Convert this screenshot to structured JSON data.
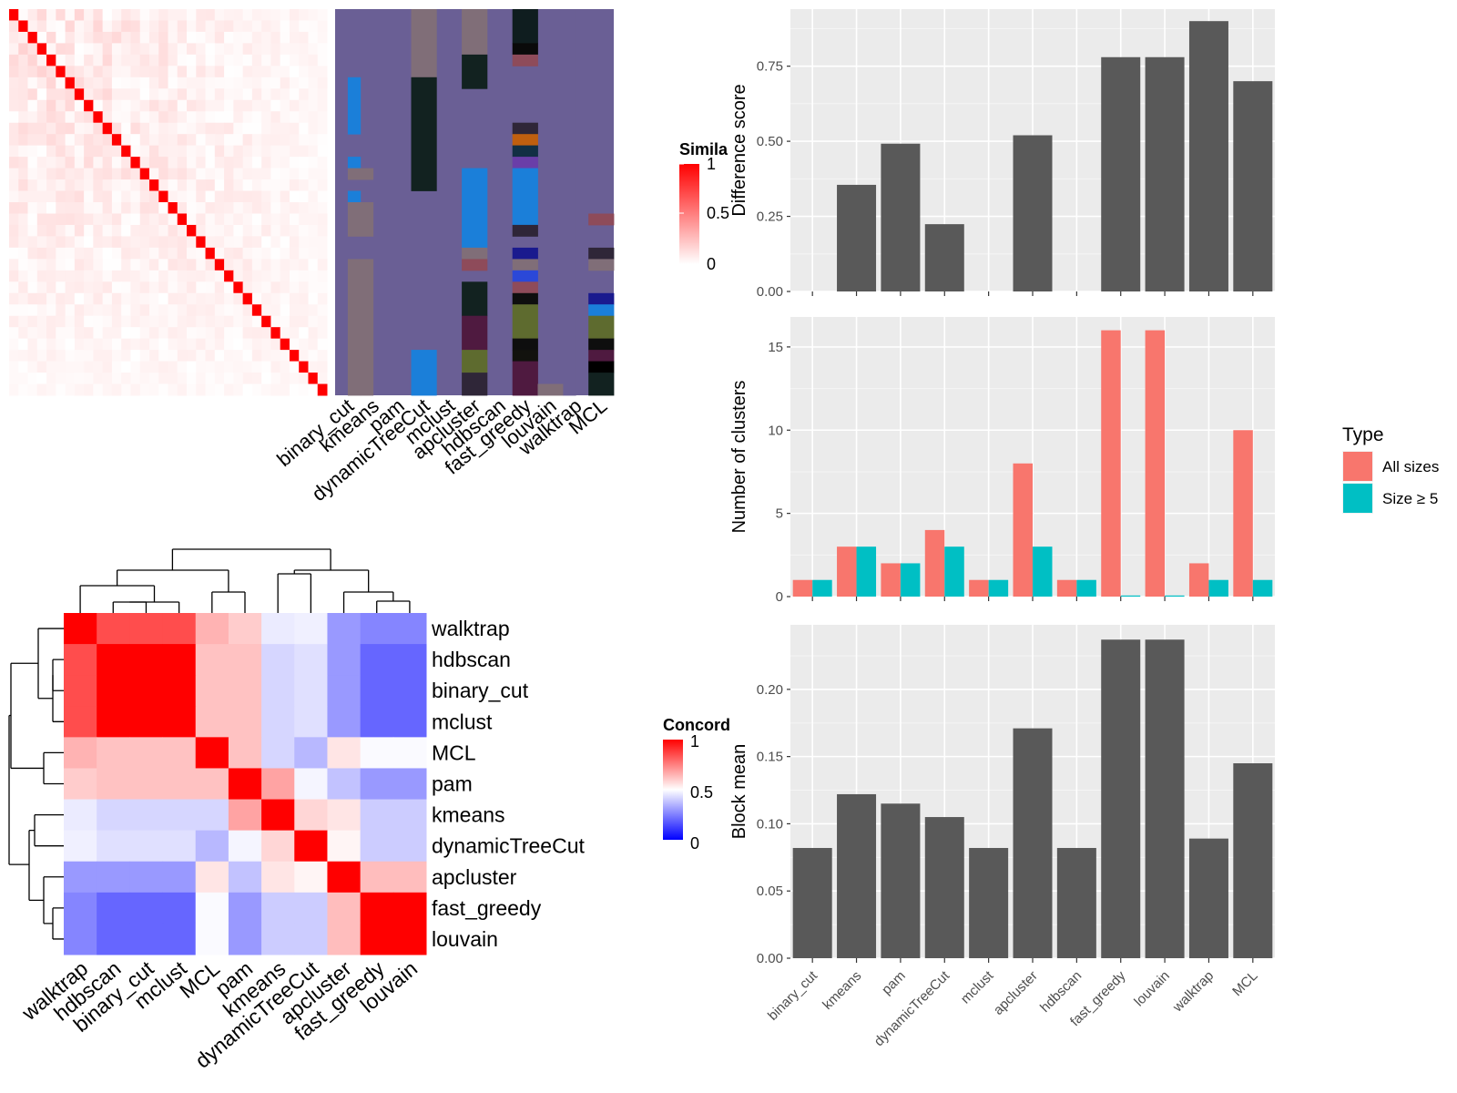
{
  "chart_data": [
    {
      "type": "heatmap",
      "legend_title": "Similarity",
      "legend_title_visible": "Simila",
      "legend_ticks": [
        "1",
        "0.5",
        "0"
      ],
      "colors": {
        "low": "#ffffff",
        "high": "#ff0000"
      },
      "size": 34,
      "diagonal": 1,
      "off_diagonal_max": 0.2
    },
    {
      "type": "heatmap",
      "subtype": "cluster-assignment",
      "columns": [
        "binary_cut",
        "kmeans",
        "pam",
        "dynamicTreeCut",
        "mclust",
        "apcluster",
        "hdbscan",
        "fast_greedy",
        "louvain",
        "walktrap",
        "MCL"
      ],
      "background_color": "#6a5f95"
    },
    {
      "type": "heatmap",
      "legend_title": "Concordance",
      "legend_title_visible": "Concord",
      "legend_ticks": [
        "1",
        "0.5",
        "0"
      ],
      "colors": {
        "low": "#0000ff",
        "mid": "#ffffff",
        "high": "#ff0000"
      },
      "rows": [
        "walktrap",
        "hdbscan",
        "binary_cut",
        "mclust",
        "MCL",
        "pam",
        "kmeans",
        "dynamicTreeCut",
        "apcluster",
        "fast_greedy",
        "louvain"
      ],
      "values": [
        [
          1.0,
          0.85,
          0.85,
          0.85,
          0.65,
          0.6,
          0.46,
          0.47,
          0.3,
          0.26,
          0.26
        ],
        [
          0.85,
          1.0,
          1.0,
          1.0,
          0.62,
          0.62,
          0.42,
          0.44,
          0.3,
          0.2,
          0.2
        ],
        [
          0.85,
          1.0,
          1.0,
          1.0,
          0.62,
          0.62,
          0.42,
          0.44,
          0.3,
          0.2,
          0.2
        ],
        [
          0.85,
          1.0,
          1.0,
          1.0,
          0.62,
          0.62,
          0.42,
          0.44,
          0.3,
          0.2,
          0.2
        ],
        [
          0.65,
          0.62,
          0.62,
          0.62,
          1.0,
          0.62,
          0.42,
          0.36,
          0.55,
          0.49,
          0.49
        ],
        [
          0.6,
          0.62,
          0.62,
          0.62,
          0.62,
          1.0,
          0.68,
          0.48,
          0.38,
          0.3,
          0.3
        ],
        [
          0.46,
          0.42,
          0.42,
          0.42,
          0.42,
          0.68,
          1.0,
          0.58,
          0.55,
          0.4,
          0.4
        ],
        [
          0.47,
          0.44,
          0.44,
          0.44,
          0.36,
          0.48,
          0.58,
          1.0,
          0.52,
          0.4,
          0.4
        ],
        [
          0.3,
          0.3,
          0.3,
          0.3,
          0.55,
          0.38,
          0.55,
          0.52,
          1.0,
          0.63,
          0.63
        ],
        [
          0.26,
          0.2,
          0.2,
          0.2,
          0.49,
          0.3,
          0.4,
          0.4,
          0.63,
          1.0,
          1.0
        ],
        [
          0.26,
          0.2,
          0.2,
          0.2,
          0.49,
          0.3,
          0.4,
          0.4,
          0.63,
          1.0,
          1.0
        ]
      ]
    },
    {
      "type": "bar",
      "categories": [
        "binary_cut",
        "kmeans",
        "pam",
        "dynamicTreeCut",
        "mclust",
        "apcluster",
        "hdbscan",
        "fast_greedy",
        "louvain",
        "walktrap",
        "MCL"
      ],
      "values": [
        0,
        0.355,
        0.492,
        0.224,
        0,
        0.52,
        0,
        0.78,
        0.78,
        0.9,
        0.7
      ],
      "ylabel": "Difference score",
      "ylim": [
        0,
        0.94
      ],
      "yticks": [
        "0.00",
        "0.25",
        "0.50",
        "0.75"
      ],
      "bar_color": "#595959",
      "grid": true
    },
    {
      "type": "bar",
      "categories": [
        "binary_cut",
        "kmeans",
        "pam",
        "dynamicTreeCut",
        "mclust",
        "apcluster",
        "hdbscan",
        "fast_greedy",
        "louvain",
        "walktrap",
        "MCL"
      ],
      "series": [
        {
          "name": "All sizes",
          "values": [
            1,
            3,
            2,
            4,
            1,
            8,
            1,
            16,
            16,
            2,
            10
          ],
          "color": "#f8766d"
        },
        {
          "name": "Size ≥ 5",
          "values": [
            1,
            3,
            2,
            3,
            1,
            3,
            1,
            0,
            0,
            1,
            1
          ],
          "color": "#00bfc4"
        }
      ],
      "ylabel": "Number of clusters",
      "ylim": [
        0,
        16.8
      ],
      "yticks": [
        "0",
        "5",
        "10",
        "15"
      ],
      "legend_title": "Type",
      "legend_position": "right",
      "grid": true
    },
    {
      "type": "bar",
      "categories": [
        "binary_cut",
        "kmeans",
        "pam",
        "dynamicTreeCut",
        "mclust",
        "apcluster",
        "hdbscan",
        "fast_greedy",
        "louvain",
        "walktrap",
        "MCL"
      ],
      "values": [
        0.082,
        0.122,
        0.115,
        0.105,
        0.082,
        0.171,
        0.082,
        0.237,
        0.237,
        0.089,
        0.145
      ],
      "ylabel": "Block mean",
      "ylim": [
        0,
        0.248
      ],
      "yticks": [
        "0.00",
        "0.05",
        "0.10",
        "0.15",
        "0.20"
      ],
      "bar_color": "#595959",
      "grid": true
    }
  ]
}
